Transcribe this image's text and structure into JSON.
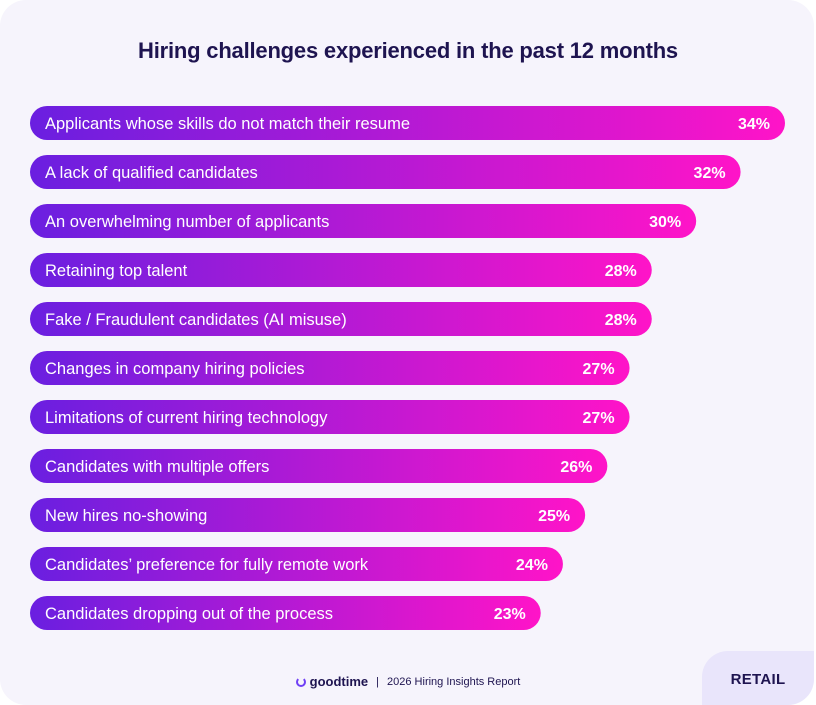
{
  "colors": {
    "bar_start": "#6a1fe0",
    "bar_end": "#ff14c8",
    "title": "#1e1450",
    "background": "#f6f4fc"
  },
  "footer": {
    "brand": "goodtime",
    "separator": "|",
    "report": "2026 Hiring Insights Report",
    "logo_icon": "goodtime-logo-icon"
  },
  "tab": {
    "label": "RETAIL"
  },
  "chart_data": {
    "type": "bar",
    "orientation": "horizontal",
    "title": "Hiring challenges experienced in the past 12 months",
    "categories": [
      "Applicants whose skills do not match their resume",
      "A lack of qualified candidates",
      "An overwhelming number of applicants",
      "Retaining top talent",
      "Fake / Fraudulent candidates (AI misuse)",
      "Changes in company hiring policies",
      "Limitations of current hiring technology",
      "Candidates with multiple offers",
      "New hires no-showing",
      "Candidates’ preference for fully remote work",
      "Candidates dropping out of the process"
    ],
    "values": [
      34,
      32,
      30,
      28,
      28,
      27,
      27,
      26,
      25,
      24,
      23
    ],
    "value_labels": [
      "34%",
      "32%",
      "30%",
      "28%",
      "28%",
      "27%",
      "27%",
      "26%",
      "25%",
      "24%",
      "23%"
    ],
    "unit": "%",
    "xlim": [
      0,
      34
    ],
    "grid": false,
    "legend": "none"
  }
}
